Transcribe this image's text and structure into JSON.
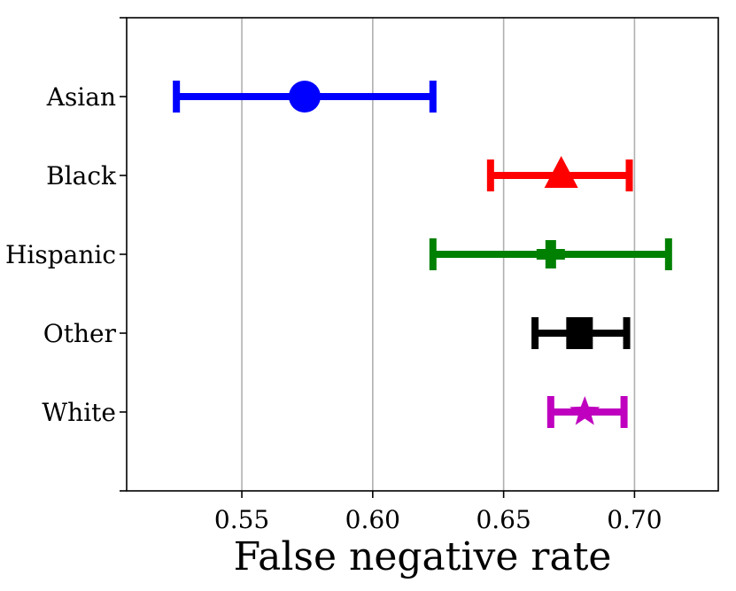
{
  "chart_data": {
    "type": "errorbar",
    "title": "",
    "xlabel": "False negative rate",
    "ylabel": "",
    "xlim": [
      0.506,
      0.732
    ],
    "xticks": [
      0.55,
      0.6,
      0.65,
      0.7
    ],
    "xtick_labels": [
      "0.55",
      "0.60",
      "0.65",
      "0.70"
    ],
    "grid": "vertical",
    "categories": [
      "Asian",
      "Black",
      "Hispanic",
      "Other",
      "White"
    ],
    "series": [
      {
        "name": "Asian",
        "value": 0.574,
        "lower": 0.525,
        "upper": 0.623,
        "color": "#0000ff",
        "marker": "circle"
      },
      {
        "name": "Black",
        "value": 0.672,
        "lower": 0.645,
        "upper": 0.698,
        "color": "#ff0000",
        "marker": "triangle"
      },
      {
        "name": "Hispanic",
        "value": 0.668,
        "lower": 0.623,
        "upper": 0.713,
        "color": "#008000",
        "marker": "plus"
      },
      {
        "name": "Other",
        "value": 0.679,
        "lower": 0.662,
        "upper": 0.697,
        "color": "#000000",
        "marker": "square"
      },
      {
        "name": "White",
        "value": 0.681,
        "lower": 0.668,
        "upper": 0.696,
        "color": "#bf00bf",
        "marker": "star"
      }
    ]
  }
}
